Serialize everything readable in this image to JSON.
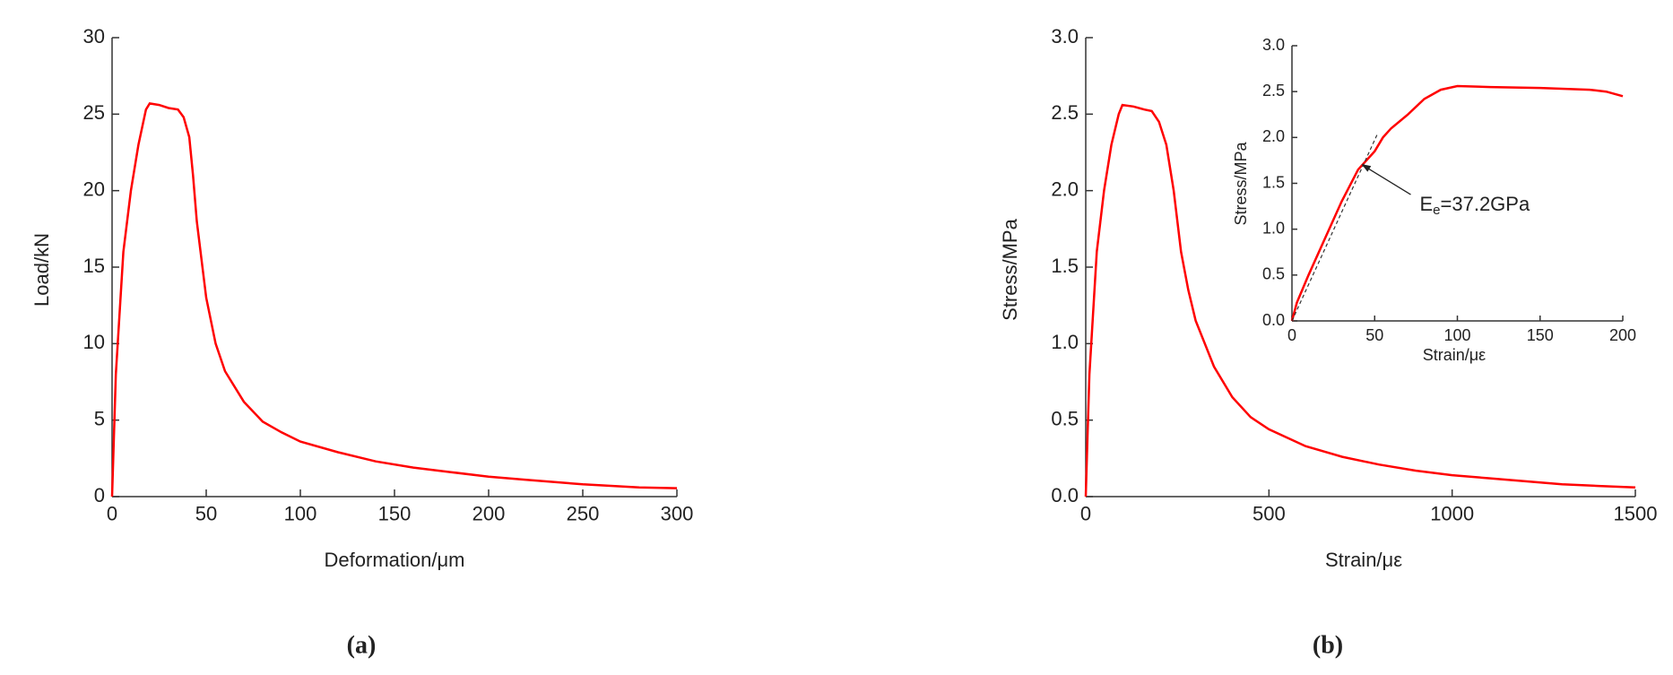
{
  "chart_data": [
    {
      "type": "line",
      "panel_label": "(a)",
      "xlabel": "Deformation/μm",
      "ylabel": "Load/kN",
      "color": "#ff0000",
      "x": [
        0,
        1,
        2,
        4,
        6,
        10,
        14,
        18,
        20,
        25,
        30,
        35,
        38,
        41,
        43,
        45,
        48,
        50,
        55,
        60,
        70,
        80,
        90,
        100,
        120,
        140,
        160,
        180,
        200,
        220,
        250,
        280,
        300
      ],
      "values": [
        0,
        4,
        8,
        12,
        16,
        20,
        23,
        25.3,
        25.7,
        25.6,
        25.4,
        25.3,
        24.8,
        23.5,
        21,
        18,
        15,
        13,
        10,
        8.2,
        6.2,
        4.9,
        4.2,
        3.6,
        2.9,
        2.3,
        1.9,
        1.6,
        1.3,
        1.1,
        0.8,
        0.6,
        0.55
      ],
      "xlim": [
        0,
        300
      ],
      "xticks": [
        0,
        50,
        100,
        150,
        200,
        250,
        300
      ],
      "ylim": [
        0,
        30
      ],
      "yticks": [
        0,
        5,
        10,
        15,
        20,
        25,
        30
      ]
    },
    {
      "type": "line",
      "panel_label": "(b)",
      "xlabel": "Strain/με",
      "ylabel": "Stress/MPa",
      "color": "#ff0000",
      "x": [
        0,
        5,
        10,
        20,
        30,
        50,
        70,
        90,
        100,
        130,
        160,
        180,
        200,
        220,
        240,
        260,
        280,
        300,
        350,
        400,
        450,
        500,
        600,
        700,
        800,
        900,
        1000,
        1100,
        1200,
        1300,
        1400,
        1500
      ],
      "values": [
        0,
        0.4,
        0.8,
        1.2,
        1.6,
        2.0,
        2.3,
        2.5,
        2.56,
        2.55,
        2.53,
        2.52,
        2.45,
        2.3,
        2.0,
        1.6,
        1.35,
        1.15,
        0.85,
        0.65,
        0.52,
        0.44,
        0.33,
        0.26,
        0.21,
        0.17,
        0.14,
        0.12,
        0.1,
        0.08,
        0.07,
        0.06
      ],
      "xlim": [
        0,
        1500
      ],
      "xticks": [
        0,
        500,
        1000,
        1500
      ],
      "ylim": [
        0,
        3
      ],
      "yticks": [
        {
          "value": 0,
          "label": "0.0"
        },
        {
          "value": 0.5,
          "label": "0.5"
        },
        {
          "value": 1,
          "label": "1.0"
        },
        {
          "value": 1.5,
          "label": "1.5"
        },
        {
          "value": 2,
          "label": "2.0"
        },
        {
          "value": 2.5,
          "label": "2.5"
        },
        {
          "value": 3,
          "label": "3.0"
        }
      ]
    },
    {
      "type": "line",
      "xlabel": "Strain/με",
      "ylabel": "Stress/MPa",
      "color": "#ff0000",
      "x": [
        0,
        3,
        10,
        20,
        30,
        40,
        50,
        55,
        60,
        70,
        80,
        90,
        100,
        120,
        150,
        180,
        190,
        200
      ],
      "values": [
        0,
        0.2,
        0.5,
        0.9,
        1.3,
        1.65,
        1.85,
        2.0,
        2.1,
        2.25,
        2.42,
        2.52,
        2.56,
        2.55,
        2.54,
        2.52,
        2.5,
        2.45
      ],
      "fit_line": {
        "x": [
          0,
          52
        ],
        "values": [
          0,
          2.05
        ]
      },
      "annotation": {
        "text": [
          "E",
          "e",
          "=37.2GPa"
        ],
        "xy": [
          42,
          1.71
        ]
      },
      "xlim": [
        0,
        200
      ],
      "xticks": [
        0,
        50,
        100,
        150,
        200
      ],
      "ylim": [
        0,
        3
      ],
      "yticks": [
        {
          "value": 0,
          "label": "0.0"
        },
        {
          "value": 0.5,
          "label": "0.5"
        },
        {
          "value": 1,
          "label": "1.0"
        },
        {
          "value": 1.5,
          "label": "1.5"
        },
        {
          "value": 2,
          "label": "2.0"
        },
        {
          "value": 2.5,
          "label": "2.5"
        },
        {
          "value": 3,
          "label": "3.0"
        }
      ]
    }
  ]
}
